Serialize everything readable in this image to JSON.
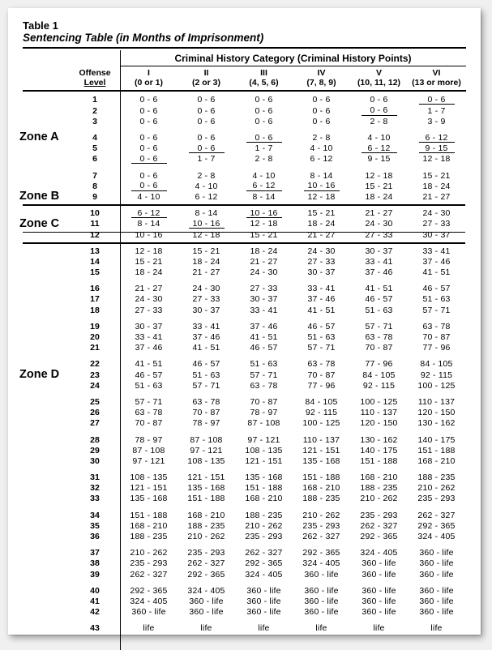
{
  "table_label": "Table 1",
  "caption": "Sentencing Table (in Months of Imprisonment)",
  "super_header": "Criminal History Category  (Criminal History Points)",
  "col_offense_top": "Offense",
  "col_offense_bot": "Level",
  "categories": [
    {
      "roman": "I",
      "pts": "(0 or 1)"
    },
    {
      "roman": "II",
      "pts": "(2 or 3)"
    },
    {
      "roman": "III",
      "pts": "(4, 5, 6)"
    },
    {
      "roman": "IV",
      "pts": "(7, 8, 9)"
    },
    {
      "roman": "V",
      "pts": "(10, 11, 12)"
    },
    {
      "roman": "VI",
      "pts": "(13 or more)"
    }
  ],
  "zones": [
    {
      "label": "Zone A",
      "row": 4
    },
    {
      "label": "Zone B",
      "row": 9
    },
    {
      "label": "Zone C",
      "row": 11
    },
    {
      "label": "Zone D",
      "row": 23
    }
  ],
  "groups": [
    {
      "start": 1,
      "rows": [
        {
          "lvl": "1",
          "c": [
            "0 - 6",
            "0 - 6",
            "0 - 6",
            "0 - 6",
            "0 - 6",
            "0 - 6"
          ],
          "u": [
            0,
            0,
            0,
            0,
            0,
            1
          ]
        },
        {
          "lvl": "2",
          "c": [
            "0 - 6",
            "0 - 6",
            "0 - 6",
            "0 - 6",
            "0 - 6",
            "1 - 7"
          ],
          "u": [
            0,
            0,
            0,
            0,
            1,
            0
          ]
        },
        {
          "lvl": "3",
          "c": [
            "0 - 6",
            "0 - 6",
            "0 - 6",
            "0 - 6",
            "2 - 8",
            "3 - 9"
          ],
          "u": [
            0,
            0,
            0,
            0,
            0,
            0
          ]
        }
      ]
    },
    {
      "start": 4,
      "rows": [
        {
          "lvl": "4",
          "c": [
            "0 - 6",
            "0 - 6",
            "0 - 6",
            "2 - 8",
            "4 - 10",
            "6 - 12"
          ],
          "u": [
            0,
            0,
            1,
            0,
            0,
            1
          ]
        },
        {
          "lvl": "5",
          "c": [
            "0 - 6",
            "0 - 6",
            "1 - 7",
            "4 - 10",
            "6 - 12",
            "9 - 15"
          ],
          "u": [
            0,
            1,
            0,
            0,
            1,
            1
          ]
        },
        {
          "lvl": "6",
          "c": [
            "0 - 6",
            "1 - 7",
            "2 - 8",
            "6 - 12",
            "9 - 15",
            "12 - 18"
          ],
          "u": [
            1,
            0,
            0,
            0,
            0,
            0
          ]
        }
      ]
    },
    {
      "start": 7,
      "rows": [
        {
          "lvl": "7",
          "c": [
            "0 - 6",
            "2 - 8",
            "4 - 10",
            "8 - 14",
            "12 - 18",
            "15 - 21"
          ],
          "u": [
            0,
            0,
            0,
            0,
            0,
            0
          ]
        },
        {
          "lvl": "8",
          "c": [
            "0 - 6",
            "4 - 10",
            "6 - 12",
            "10 - 16",
            "15 - 21",
            "18 - 24"
          ],
          "u": [
            1,
            0,
            1,
            1,
            0,
            0
          ]
        },
        {
          "lvl": "9",
          "c": [
            "4 - 10",
            "6 - 12",
            "8 - 14",
            "12 - 18",
            "18 - 24",
            "21 - 27"
          ],
          "u": [
            0,
            0,
            0,
            0,
            0,
            0
          ]
        }
      ]
    },
    {
      "start": 10,
      "rows": [
        {
          "lvl": "10",
          "c": [
            "6 - 12",
            "8 - 14",
            "10 - 16",
            "15 - 21",
            "21 - 27",
            "24 - 30"
          ],
          "u": [
            1,
            0,
            1,
            0,
            0,
            0
          ]
        },
        {
          "lvl": "11",
          "c": [
            "8 - 14",
            "10 - 16",
            "12 - 18",
            "18 - 24",
            "24 - 30",
            "27 - 33"
          ],
          "u": [
            0,
            1,
            0,
            0,
            0,
            0
          ]
        },
        {
          "lvl": "12",
          "c": [
            "10 - 16",
            "12 - 18",
            "15 - 21",
            "21 - 27",
            "27 - 33",
            "30 - 37"
          ],
          "u": [
            0,
            0,
            0,
            0,
            0,
            0
          ]
        }
      ]
    },
    {
      "start": 13,
      "rows": [
        {
          "lvl": "13",
          "c": [
            "12 - 18",
            "15 - 21",
            "18 - 24",
            "24 - 30",
            "30 - 37",
            "33 - 41"
          ],
          "u": [
            0,
            0,
            0,
            0,
            0,
            0
          ]
        },
        {
          "lvl": "14",
          "c": [
            "15 - 21",
            "18 - 24",
            "21 - 27",
            "27 - 33",
            "33 - 41",
            "37 - 46"
          ],
          "u": [
            0,
            0,
            0,
            0,
            0,
            0
          ]
        },
        {
          "lvl": "15",
          "c": [
            "18 - 24",
            "21 - 27",
            "24 - 30",
            "30 - 37",
            "37 - 46",
            "41 - 51"
          ],
          "u": [
            0,
            0,
            0,
            0,
            0,
            0
          ]
        }
      ]
    },
    {
      "start": 16,
      "rows": [
        {
          "lvl": "16",
          "c": [
            "21 - 27",
            "24 - 30",
            "27 - 33",
            "33 - 41",
            "41 - 51",
            "46 - 57"
          ],
          "u": [
            0,
            0,
            0,
            0,
            0,
            0
          ]
        },
        {
          "lvl": "17",
          "c": [
            "24 - 30",
            "27 - 33",
            "30 - 37",
            "37 - 46",
            "46 - 57",
            "51 - 63"
          ],
          "u": [
            0,
            0,
            0,
            0,
            0,
            0
          ]
        },
        {
          "lvl": "18",
          "c": [
            "27 - 33",
            "30 - 37",
            "33 - 41",
            "41 - 51",
            "51 - 63",
            "57 - 71"
          ],
          "u": [
            0,
            0,
            0,
            0,
            0,
            0
          ]
        }
      ]
    },
    {
      "start": 19,
      "rows": [
        {
          "lvl": "19",
          "c": [
            "30 - 37",
            "33 - 41",
            "37 - 46",
            "46 - 57",
            "57 - 71",
            "63 - 78"
          ],
          "u": [
            0,
            0,
            0,
            0,
            0,
            0
          ]
        },
        {
          "lvl": "20",
          "c": [
            "33 - 41",
            "37 - 46",
            "41 - 51",
            "51 - 63",
            "63 - 78",
            "70 - 87"
          ],
          "u": [
            0,
            0,
            0,
            0,
            0,
            0
          ]
        },
        {
          "lvl": "21",
          "c": [
            "37 - 46",
            "41 - 51",
            "46 - 57",
            "57 - 71",
            "70 - 87",
            "77 - 96"
          ],
          "u": [
            0,
            0,
            0,
            0,
            0,
            0
          ]
        }
      ]
    },
    {
      "start": 22,
      "rows": [
        {
          "lvl": "22",
          "c": [
            "41 - 51",
            "46 - 57",
            "51 - 63",
            "63 - 78",
            "77 - 96",
            "84 - 105"
          ],
          "u": [
            0,
            0,
            0,
            0,
            0,
            0
          ]
        },
        {
          "lvl": "23",
          "c": [
            "46 - 57",
            "51 - 63",
            "57 - 71",
            "70 - 87",
            "84 - 105",
            "92 - 115"
          ],
          "u": [
            0,
            0,
            0,
            0,
            0,
            0
          ]
        },
        {
          "lvl": "24",
          "c": [
            "51 - 63",
            "57 - 71",
            "63 - 78",
            "77 - 96",
            "92 - 115",
            "100 - 125"
          ],
          "u": [
            0,
            0,
            0,
            0,
            0,
            0
          ]
        }
      ]
    },
    {
      "start": 25,
      "rows": [
        {
          "lvl": "25",
          "c": [
            "57 - 71",
            "63 - 78",
            "70 - 87",
            "84 - 105",
            "100 - 125",
            "110 - 137"
          ],
          "u": [
            0,
            0,
            0,
            0,
            0,
            0
          ]
        },
        {
          "lvl": "26",
          "c": [
            "63 - 78",
            "70 - 87",
            "78 - 97",
            "92 - 115",
            "110 - 137",
            "120 - 150"
          ],
          "u": [
            0,
            0,
            0,
            0,
            0,
            0
          ]
        },
        {
          "lvl": "27",
          "c": [
            "70 - 87",
            "78 - 97",
            "87 - 108",
            "100 - 125",
            "120 - 150",
            "130 - 162"
          ],
          "u": [
            0,
            0,
            0,
            0,
            0,
            0
          ]
        }
      ]
    },
    {
      "start": 28,
      "rows": [
        {
          "lvl": "28",
          "c": [
            "78 - 97",
            "87 - 108",
            "97 - 121",
            "110 - 137",
            "130 - 162",
            "140 - 175"
          ],
          "u": [
            0,
            0,
            0,
            0,
            0,
            0
          ]
        },
        {
          "lvl": "29",
          "c": [
            "87 - 108",
            "97 - 121",
            "108 - 135",
            "121 - 151",
            "140 - 175",
            "151 - 188"
          ],
          "u": [
            0,
            0,
            0,
            0,
            0,
            0
          ]
        },
        {
          "lvl": "30",
          "c": [
            "97 - 121",
            "108 - 135",
            "121 - 151",
            "135 - 168",
            "151 - 188",
            "168 - 210"
          ],
          "u": [
            0,
            0,
            0,
            0,
            0,
            0
          ]
        }
      ]
    },
    {
      "start": 31,
      "rows": [
        {
          "lvl": "31",
          "c": [
            "108 - 135",
            "121 - 151",
            "135 - 168",
            "151 - 188",
            "168 - 210",
            "188 - 235"
          ],
          "u": [
            0,
            0,
            0,
            0,
            0,
            0
          ]
        },
        {
          "lvl": "32",
          "c": [
            "121 - 151",
            "135 - 168",
            "151 - 188",
            "168 - 210",
            "188 - 235",
            "210 - 262"
          ],
          "u": [
            0,
            0,
            0,
            0,
            0,
            0
          ]
        },
        {
          "lvl": "33",
          "c": [
            "135 - 168",
            "151 - 188",
            "168 - 210",
            "188 - 235",
            "210 - 262",
            "235 - 293"
          ],
          "u": [
            0,
            0,
            0,
            0,
            0,
            0
          ]
        }
      ]
    },
    {
      "start": 34,
      "rows": [
        {
          "lvl": "34",
          "c": [
            "151 - 188",
            "168 - 210",
            "188 - 235",
            "210 - 262",
            "235 - 293",
            "262 - 327"
          ],
          "u": [
            0,
            0,
            0,
            0,
            0,
            0
          ]
        },
        {
          "lvl": "35",
          "c": [
            "168 - 210",
            "188 - 235",
            "210 - 262",
            "235 - 293",
            "262 - 327",
            "292 - 365"
          ],
          "u": [
            0,
            0,
            0,
            0,
            0,
            0
          ]
        },
        {
          "lvl": "36",
          "c": [
            "188 - 235",
            "210 - 262",
            "235 - 293",
            "262 - 327",
            "292 - 365",
            "324 - 405"
          ],
          "u": [
            0,
            0,
            0,
            0,
            0,
            0
          ]
        }
      ]
    },
    {
      "start": 37,
      "rows": [
        {
          "lvl": "37",
          "c": [
            "210 - 262",
            "235 - 293",
            "262 - 327",
            "292 - 365",
            "324 - 405",
            "360 - life"
          ],
          "u": [
            0,
            0,
            0,
            0,
            0,
            0
          ]
        },
        {
          "lvl": "38",
          "c": [
            "235 - 293",
            "262 - 327",
            "292 - 365",
            "324 - 405",
            "360 - life",
            "360 - life"
          ],
          "u": [
            0,
            0,
            0,
            0,
            0,
            0
          ]
        },
        {
          "lvl": "39",
          "c": [
            "262 - 327",
            "292 - 365",
            "324 - 405",
            "360 - life",
            "360 - life",
            "360 - life"
          ],
          "u": [
            0,
            0,
            0,
            0,
            0,
            0
          ]
        }
      ]
    },
    {
      "start": 40,
      "rows": [
        {
          "lvl": "40",
          "c": [
            "292 - 365",
            "324 - 405",
            "360 - life",
            "360 - life",
            "360 - life",
            "360 - life"
          ],
          "u": [
            0,
            0,
            0,
            0,
            0,
            0
          ]
        },
        {
          "lvl": "41",
          "c": [
            "324 - 405",
            "360 - life",
            "360 - life",
            "360 - life",
            "360 - life",
            "360 - life"
          ],
          "u": [
            0,
            0,
            0,
            0,
            0,
            0
          ]
        },
        {
          "lvl": "42",
          "c": [
            "360 - life",
            "360 - life",
            "360 - life",
            "360 - life",
            "360 - life",
            "360 - life"
          ],
          "u": [
            0,
            0,
            0,
            0,
            0,
            0
          ]
        }
      ]
    },
    {
      "start": 43,
      "rows": [
        {
          "lvl": "43",
          "c": [
            "life",
            "life",
            "life",
            "life",
            "life",
            "life"
          ],
          "u": [
            0,
            0,
            0,
            0,
            0,
            0
          ]
        }
      ]
    }
  ],
  "zone_dividers": [
    {
      "after_row": 9
    },
    {
      "after_row": 11
    },
    {
      "after_row": 12
    }
  ],
  "layout": {
    "row_h": 13.2,
    "gap_h": 7,
    "col_zone_w": 58,
    "col_level_w": 62,
    "col_cat_w": 71
  }
}
